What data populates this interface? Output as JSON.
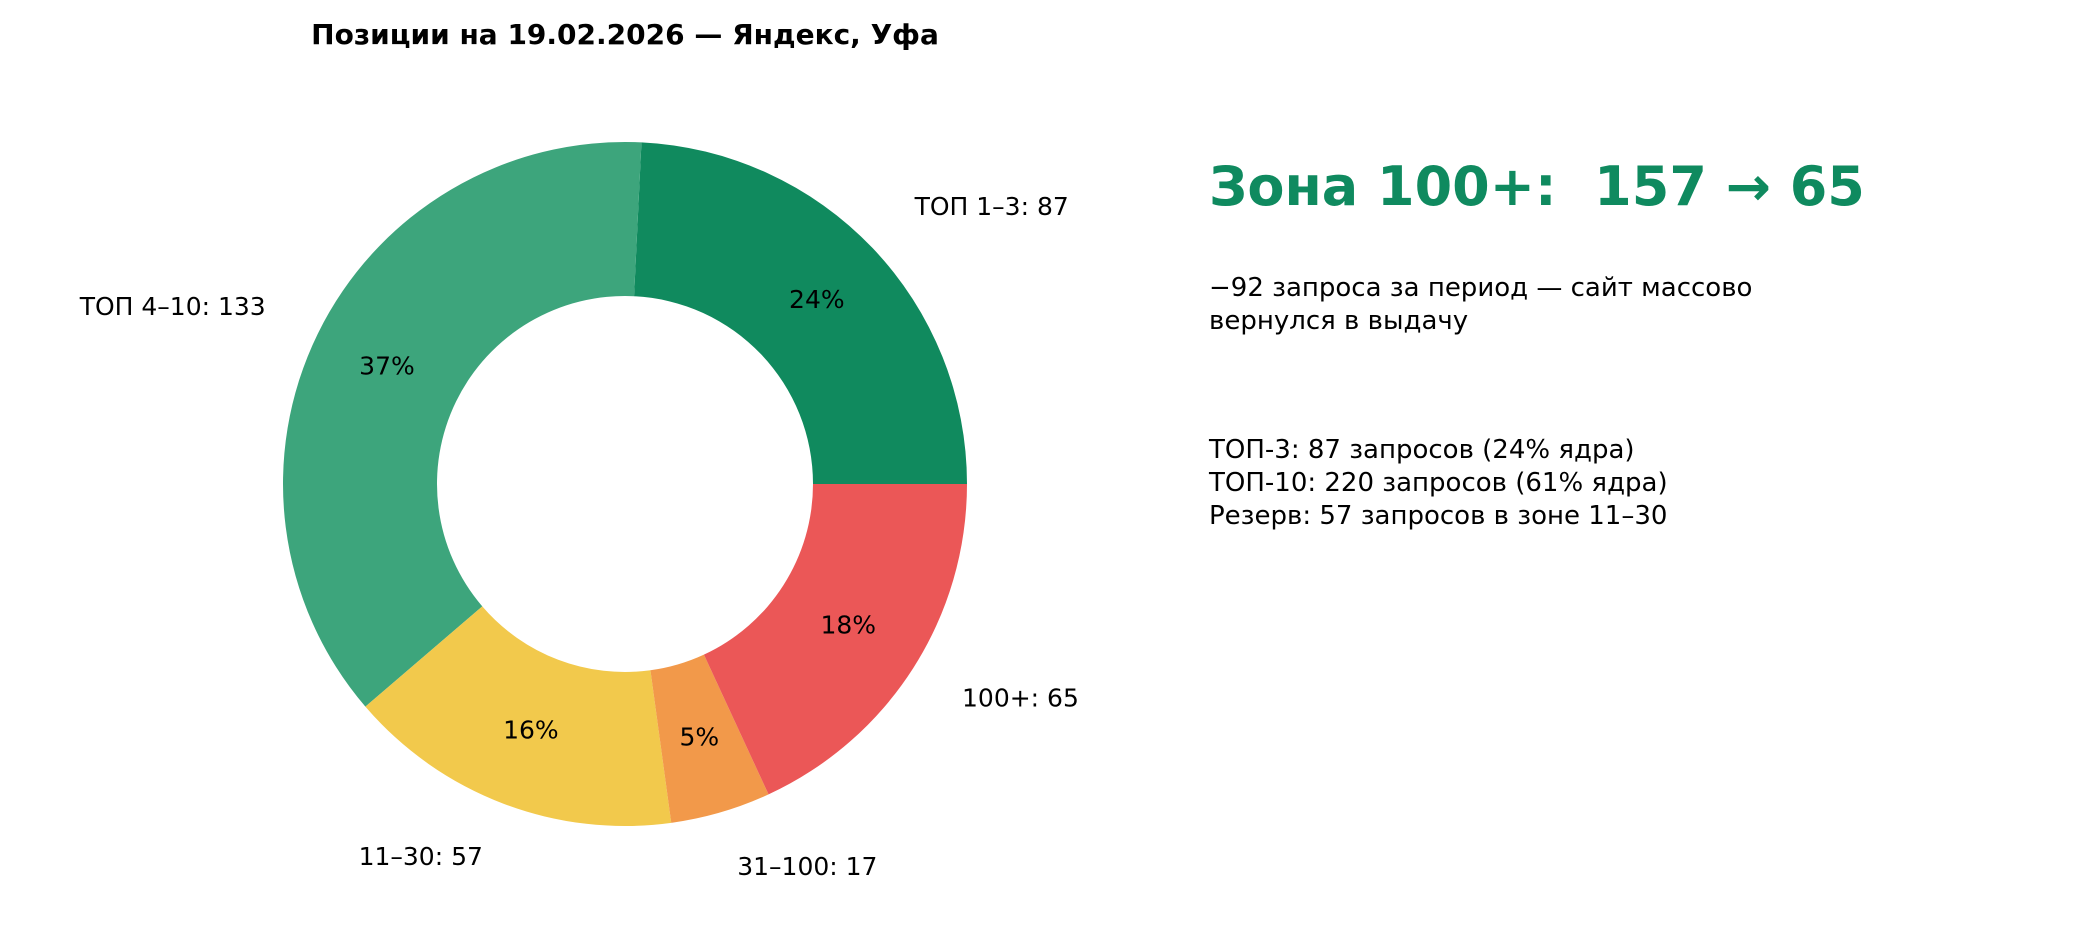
{
  "chart_data": {
    "type": "pie",
    "variant": "donut",
    "title": "Позиции на 19.02.2026 — Яндекс, Уфа",
    "start_angle_deg": 0,
    "direction": "counterclockwise",
    "slices": [
      {
        "label": "ТОП 1–3: 87",
        "category": "ТОП 1–3",
        "value": 87,
        "percent_label": "24%",
        "color": "#108a5e"
      },
      {
        "label": "ТОП 4–10: 133",
        "category": "ТОП 4–10",
        "value": 133,
        "percent_label": "37%",
        "color": "#3da57c"
      },
      {
        "label": "11–30: 57",
        "category": "11–30",
        "value": 57,
        "percent_label": "16%",
        "color": "#f2c94c"
      },
      {
        "label": "31–100: 17",
        "category": "31–100",
        "value": 17,
        "percent_label": "5%",
        "color": "#f2994a"
      },
      {
        "label": "100+: 65",
        "category": "100+",
        "value": 65,
        "percent_label": "18%",
        "color": "#eb5757"
      }
    ]
  },
  "side": {
    "headline": "Зона 100+:  157 → 65",
    "headline_color": "#0f8a5f",
    "subline": "−92 запроса за период — сайт массово вернулся в выдачу",
    "stats": [
      "ТОП-3: 87 запросов (24% ядра)",
      "ТОП-10: 220 запросов (61% ядра)",
      "Резерв: 57 запросов в зоне 11–30"
    ]
  }
}
